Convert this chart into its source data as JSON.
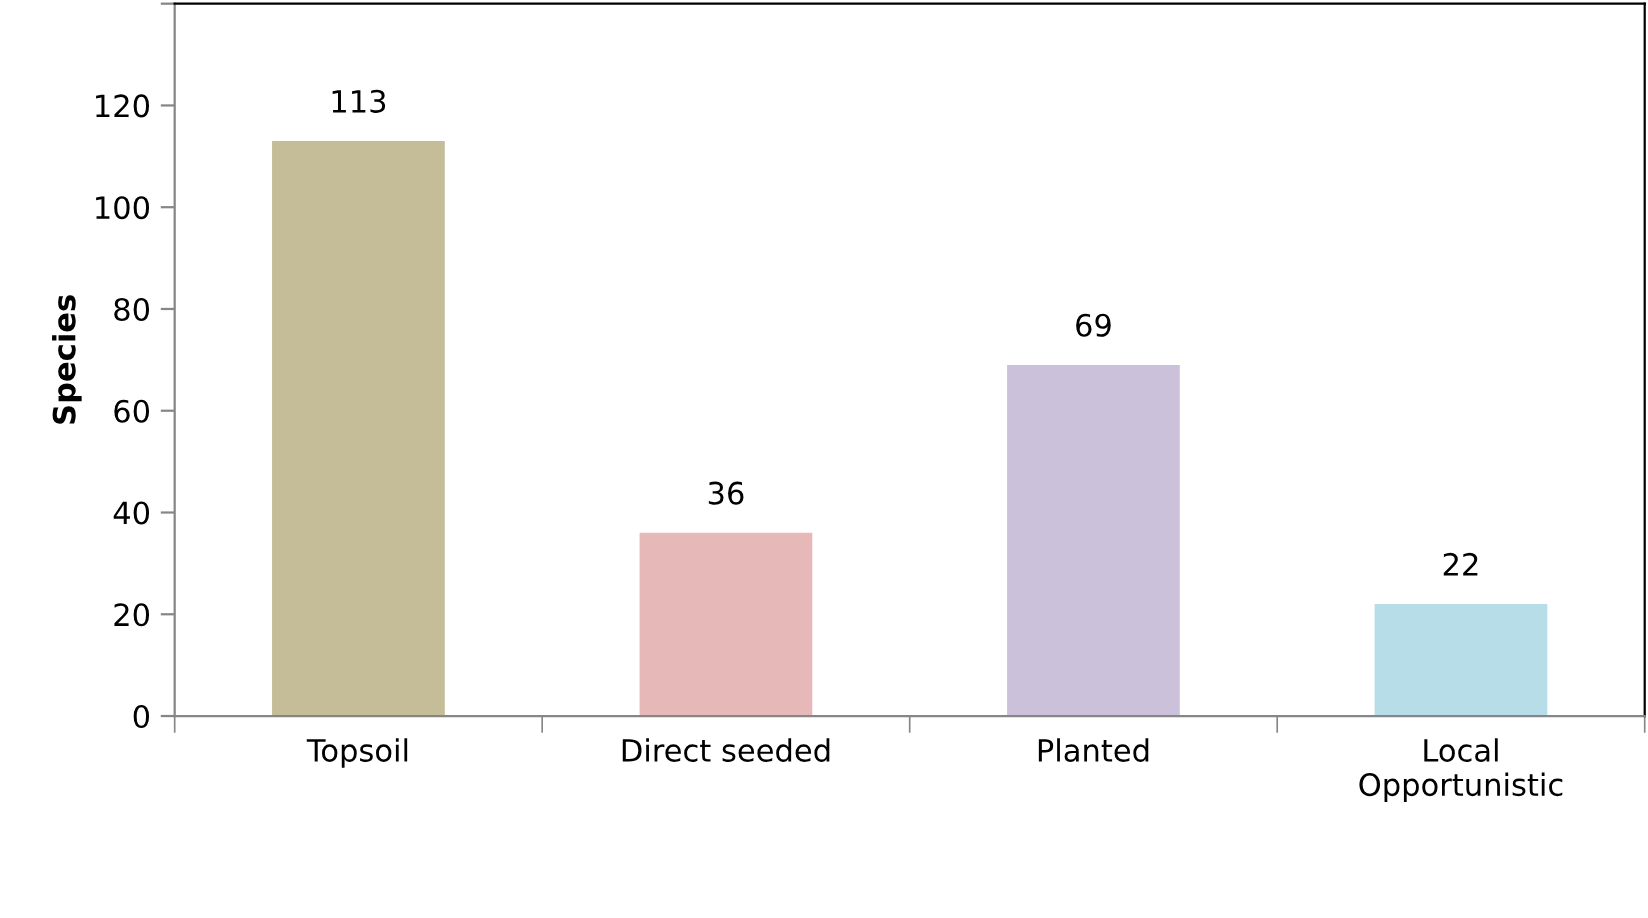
{
  "chart_data": {
    "type": "bar",
    "ylabel": "Species",
    "categories": [
      "Topsoil",
      "Direct seeded",
      "Planted",
      "Local Opportunistic"
    ],
    "values": [
      113,
      36,
      69,
      22
    ],
    "colors": [
      "#c4bd97",
      "#e6b9b8",
      "#ccc1da",
      "#b7dee8"
    ],
    "ylim": [
      0,
      140
    ],
    "yticks": [
      0,
      20,
      40,
      60,
      80,
      100,
      120,
      {
        "value": 140,
        "label": null
      }
    ],
    "data_labels": true,
    "grid": false,
    "legend": false
  }
}
